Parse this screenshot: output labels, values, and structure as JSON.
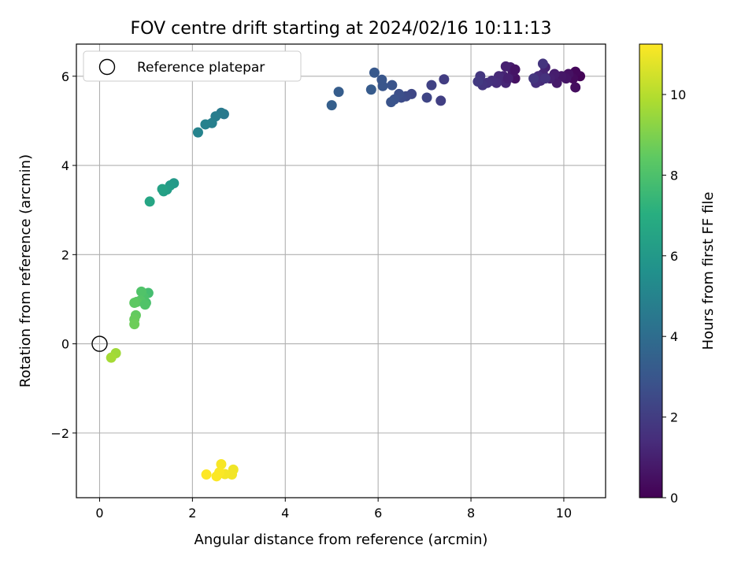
{
  "chart_data": {
    "type": "scatter",
    "title": "FOV centre drift starting at 2024/02/16 10:11:13",
    "xlabel": "Angular distance from reference (arcmin)",
    "ylabel": "Rotation from reference (arcmin)",
    "xlim": [
      -0.5,
      10.9
    ],
    "ylim": [
      -3.45,
      6.72
    ],
    "xticks": [
      0,
      2,
      4,
      6,
      8,
      10
    ],
    "xtick_labels": [
      "0",
      "2",
      "4",
      "6",
      "8",
      "10"
    ],
    "yticks": [
      -2,
      0,
      2,
      4,
      6
    ],
    "ytick_labels": [
      "−2",
      "0",
      "2",
      "4",
      "6"
    ],
    "grid": true,
    "legend": {
      "placement": "top-left",
      "entries": [
        "Reference platepar"
      ]
    },
    "reference_point": {
      "name": "Reference platepar",
      "x": 0,
      "y": 0
    },
    "colorbar": {
      "label": "Hours from first FF file",
      "min": 0,
      "max": 11.25,
      "ticks": [
        0,
        2,
        4,
        6,
        8,
        10
      ],
      "tick_labels": [
        "0",
        "2",
        "4",
        "6",
        "8",
        "10"
      ],
      "colormap": "viridis"
    },
    "points": [
      {
        "x": 10.35,
        "y": 6.0,
        "h": 0.1
      },
      {
        "x": 10.25,
        "y": 6.1,
        "h": 0.2
      },
      {
        "x": 10.2,
        "y": 5.95,
        "h": 0.3
      },
      {
        "x": 10.25,
        "y": 5.75,
        "h": 0.4
      },
      {
        "x": 10.1,
        "y": 6.05,
        "h": 0.5
      },
      {
        "x": 10.05,
        "y": 5.95,
        "h": 0.6
      },
      {
        "x": 9.95,
        "y": 6.0,
        "h": 0.7
      },
      {
        "x": 9.85,
        "y": 5.85,
        "h": 0.8
      },
      {
        "x": 9.8,
        "y": 6.05,
        "h": 0.9
      },
      {
        "x": 9.7,
        "y": 5.95,
        "h": 1.0
      },
      {
        "x": 9.6,
        "y": 6.2,
        "h": 1.1
      },
      {
        "x": 9.55,
        "y": 6.05,
        "h": 1.2
      },
      {
        "x": 9.5,
        "y": 5.9,
        "h": 1.3
      },
      {
        "x": 9.45,
        "y": 6.0,
        "h": 1.4
      },
      {
        "x": 9.4,
        "y": 5.85,
        "h": 1.5
      },
      {
        "x": 9.6,
        "y": 5.95,
        "h": 1.6
      },
      {
        "x": 9.55,
        "y": 6.28,
        "h": 1.7
      },
      {
        "x": 9.35,
        "y": 5.95,
        "h": 1.8
      },
      {
        "x": 8.95,
        "y": 5.95,
        "h": 0.5
      },
      {
        "x": 8.9,
        "y": 6.1,
        "h": 0.7
      },
      {
        "x": 8.85,
        "y": 6.2,
        "h": 0.9
      },
      {
        "x": 8.75,
        "y": 6.22,
        "h": 1.0
      },
      {
        "x": 8.7,
        "y": 6.0,
        "h": 1.1
      },
      {
        "x": 8.75,
        "y": 5.85,
        "h": 1.2
      },
      {
        "x": 8.6,
        "y": 6.0,
        "h": 1.3
      },
      {
        "x": 8.55,
        "y": 5.85,
        "h": 1.4
      },
      {
        "x": 8.45,
        "y": 5.9,
        "h": 1.5
      },
      {
        "x": 8.35,
        "y": 5.85,
        "h": 1.6
      },
      {
        "x": 8.25,
        "y": 5.8,
        "h": 1.7
      },
      {
        "x": 8.2,
        "y": 6.0,
        "h": 1.8
      },
      {
        "x": 8.15,
        "y": 5.88,
        "h": 1.9
      },
      {
        "x": 8.95,
        "y": 6.15,
        "h": 0.6
      },
      {
        "x": 8.8,
        "y": 5.95,
        "h": 1.0
      },
      {
        "x": 7.42,
        "y": 5.93,
        "h": 2.0
      },
      {
        "x": 7.35,
        "y": 5.45,
        "h": 2.1
      },
      {
        "x": 7.15,
        "y": 5.8,
        "h": 2.2
      },
      {
        "x": 7.05,
        "y": 5.52,
        "h": 2.3
      },
      {
        "x": 6.72,
        "y": 5.6,
        "h": 2.4
      },
      {
        "x": 6.6,
        "y": 5.55,
        "h": 2.5
      },
      {
        "x": 6.5,
        "y": 5.52,
        "h": 2.6
      },
      {
        "x": 6.45,
        "y": 5.6,
        "h": 2.7
      },
      {
        "x": 6.35,
        "y": 5.48,
        "h": 2.8
      },
      {
        "x": 6.28,
        "y": 5.42,
        "h": 2.9
      },
      {
        "x": 6.3,
        "y": 5.8,
        "h": 2.9
      },
      {
        "x": 6.1,
        "y": 5.78,
        "h": 3.0
      },
      {
        "x": 6.08,
        "y": 5.92,
        "h": 3.0
      },
      {
        "x": 5.92,
        "y": 6.08,
        "h": 3.1
      },
      {
        "x": 5.85,
        "y": 5.7,
        "h": 3.2
      },
      {
        "x": 5.15,
        "y": 5.65,
        "h": 3.3
      },
      {
        "x": 5.0,
        "y": 5.35,
        "h": 3.4
      },
      {
        "x": 2.68,
        "y": 5.15,
        "h": 4.5
      },
      {
        "x": 2.62,
        "y": 5.18,
        "h": 4.6
      },
      {
        "x": 2.5,
        "y": 5.1,
        "h": 4.7
      },
      {
        "x": 2.42,
        "y": 4.95,
        "h": 4.8
      },
      {
        "x": 2.28,
        "y": 4.92,
        "h": 4.9
      },
      {
        "x": 2.12,
        "y": 4.74,
        "h": 5.0
      },
      {
        "x": 1.6,
        "y": 3.6,
        "h": 6.0
      },
      {
        "x": 1.52,
        "y": 3.55,
        "h": 6.1
      },
      {
        "x": 1.45,
        "y": 3.46,
        "h": 6.2
      },
      {
        "x": 1.38,
        "y": 3.42,
        "h": 6.3
      },
      {
        "x": 1.35,
        "y": 3.47,
        "h": 6.4
      },
      {
        "x": 1.08,
        "y": 3.19,
        "h": 6.6
      },
      {
        "x": 1.05,
        "y": 1.14,
        "h": 7.8
      },
      {
        "x": 1.0,
        "y": 0.92,
        "h": 7.9
      },
      {
        "x": 0.95,
        "y": 1.05,
        "h": 8.0
      },
      {
        "x": 0.9,
        "y": 1.17,
        "h": 8.1
      },
      {
        "x": 0.88,
        "y": 0.97,
        "h": 8.2
      },
      {
        "x": 0.8,
        "y": 0.94,
        "h": 8.3
      },
      {
        "x": 0.75,
        "y": 0.92,
        "h": 8.4
      },
      {
        "x": 0.78,
        "y": 0.64,
        "h": 8.5
      },
      {
        "x": 0.75,
        "y": 0.55,
        "h": 8.6
      },
      {
        "x": 0.75,
        "y": 0.44,
        "h": 8.7
      },
      {
        "x": 0.98,
        "y": 0.88,
        "h": 8.1
      },
      {
        "x": 0.35,
        "y": -0.21,
        "h": 9.6
      },
      {
        "x": 0.25,
        "y": -0.31,
        "h": 9.7
      },
      {
        "x": 2.88,
        "y": -2.82,
        "h": 11.0
      },
      {
        "x": 2.85,
        "y": -2.93,
        "h": 11.05
      },
      {
        "x": 2.7,
        "y": -2.92,
        "h": 11.1
      },
      {
        "x": 2.62,
        "y": -2.7,
        "h": 11.15
      },
      {
        "x": 2.58,
        "y": -2.88,
        "h": 11.2
      },
      {
        "x": 2.52,
        "y": -2.97,
        "h": 11.22
      },
      {
        "x": 2.3,
        "y": -2.93,
        "h": 11.25
      }
    ]
  }
}
